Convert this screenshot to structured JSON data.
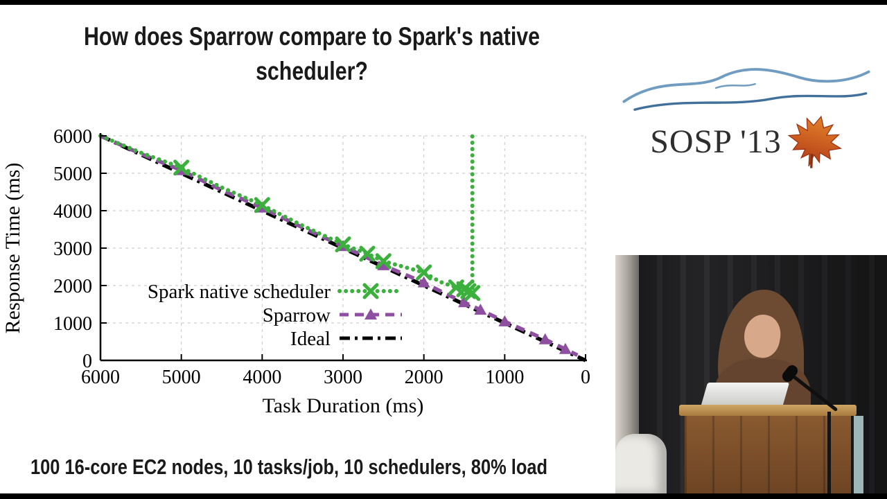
{
  "window": {
    "background": "#ffffff",
    "letterbox_color": "#000000"
  },
  "slide": {
    "title_line1": "How does Sparrow compare to Spark's native",
    "title_line2": "scheduler?",
    "caption": "100 16-core EC2 nodes, 10 tasks/job, 10 schedulers, 80% load"
  },
  "logo": {
    "text": "SOSP '13",
    "mountain_color": "#6f9cc0",
    "mountain_color_dark": "#41719b",
    "leaf_color_top": "#e2822a",
    "leaf_color_bottom": "#b33a17"
  },
  "chart_data": {
    "type": "line",
    "title": "",
    "xlabel": "Task Duration (ms)",
    "ylabel": "Response Time (ms)",
    "xlim": [
      6000,
      0
    ],
    "ylim": [
      0,
      6000
    ],
    "x_reversed": true,
    "grid": "dashed",
    "x_ticks": [
      6000,
      5000,
      4000,
      3000,
      2000,
      1000,
      0
    ],
    "y_ticks": [
      0,
      1000,
      2000,
      3000,
      4000,
      5000,
      6000
    ],
    "legend_position": "inside-left-bottom",
    "series": [
      {
        "name": "Spark native scheduler",
        "color": "#3cb03c",
        "style": "dotted",
        "marker": "x",
        "points": [
          [
            6000,
            6000
          ],
          [
            5500,
            5550
          ],
          [
            5000,
            5150
          ],
          [
            4500,
            4620
          ],
          [
            4000,
            4150
          ],
          [
            3500,
            3600
          ],
          [
            3000,
            3100
          ],
          [
            2700,
            2850
          ],
          [
            2500,
            2650
          ],
          [
            2250,
            2500
          ],
          [
            2000,
            2350
          ],
          [
            1800,
            2100
          ],
          [
            1600,
            1950
          ],
          [
            1500,
            1900
          ],
          [
            1450,
            1850
          ],
          [
            1400,
            1800
          ],
          [
            1400,
            6000
          ]
        ],
        "marker_points": [
          [
            5000,
            5150
          ],
          [
            4000,
            4150
          ],
          [
            3000,
            3100
          ],
          [
            2700,
            2850
          ],
          [
            2500,
            2650
          ],
          [
            2000,
            2350
          ],
          [
            1600,
            1950
          ],
          [
            1500,
            1900
          ],
          [
            1450,
            1850
          ],
          [
            1400,
            1800
          ]
        ]
      },
      {
        "name": "Sparrow",
        "color": "#8e4fa0",
        "style": "dashed",
        "marker": "triangle",
        "points": [
          [
            6000,
            6000
          ],
          [
            5500,
            5520
          ],
          [
            5000,
            5080
          ],
          [
            4500,
            4550
          ],
          [
            4000,
            4080
          ],
          [
            3500,
            3550
          ],
          [
            3000,
            3050
          ],
          [
            2500,
            2540
          ],
          [
            2000,
            2080
          ],
          [
            1750,
            1800
          ],
          [
            1500,
            1550
          ],
          [
            1400,
            1450
          ],
          [
            1300,
            1350
          ],
          [
            1000,
            1040
          ],
          [
            750,
            800
          ],
          [
            500,
            560
          ],
          [
            250,
            300
          ],
          [
            100,
            140
          ]
        ],
        "marker_points": [
          [
            5000,
            5080
          ],
          [
            4000,
            4080
          ],
          [
            3000,
            3050
          ],
          [
            2500,
            2540
          ],
          [
            2000,
            2080
          ],
          [
            1500,
            1550
          ],
          [
            1300,
            1350
          ],
          [
            1000,
            1040
          ],
          [
            500,
            560
          ],
          [
            250,
            300
          ]
        ]
      },
      {
        "name": "Ideal",
        "color": "#000000",
        "style": "dashdot",
        "marker": "none",
        "points": [
          [
            6000,
            6000
          ],
          [
            0,
            0
          ]
        ],
        "marker_points": []
      }
    ]
  }
}
